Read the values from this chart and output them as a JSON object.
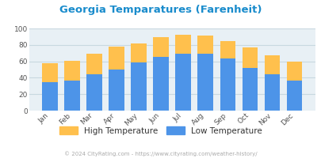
{
  "title": "Georgia Temparatures (Farenheit)",
  "months": [
    "Jan",
    "Feb",
    "Mar",
    "Apr",
    "May",
    "Jun",
    "Jul",
    "Aug",
    "Sep",
    "Oct",
    "Nov",
    "Dec"
  ],
  "low_temps": [
    35,
    37,
    44,
    50,
    59,
    65,
    69,
    69,
    63,
    52,
    44,
    37
  ],
  "high_temps": [
    58,
    61,
    69,
    78,
    82,
    89,
    92,
    91,
    85,
    77,
    67,
    60
  ],
  "low_color": "#4d94e8",
  "high_color": "#ffc04d",
  "bg_color": "#e8f0f5",
  "title_color": "#1a8ccc",
  "ylim": [
    0,
    100
  ],
  "yticks": [
    0,
    20,
    40,
    60,
    80,
    100
  ],
  "legend_high": "High Temperature",
  "legend_low": "Low Temperature",
  "legend_text_color": "#333333",
  "footer": "© 2024 CityRating.com - https://www.cityrating.com/weather-history/",
  "footer_color": "#aaaaaa",
  "grid_color": "#c8d8e0",
  "tick_color": "#555555",
  "bar_width": 0.7
}
